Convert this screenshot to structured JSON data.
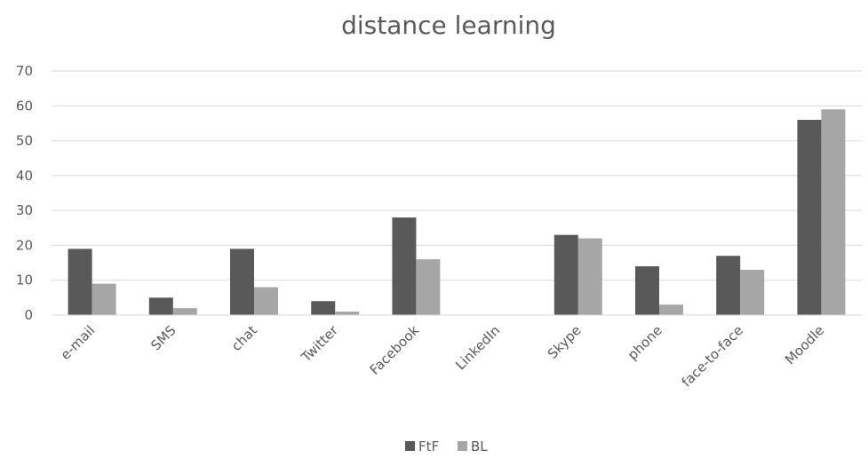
{
  "chart_data": {
    "type": "bar",
    "title": "distance learning",
    "xlabel": "",
    "ylabel": "",
    "ylim": [
      0,
      70
    ],
    "yticks": [
      0,
      10,
      20,
      30,
      40,
      50,
      60,
      70
    ],
    "grid": true,
    "legend_position": "bottom",
    "categories": [
      "e-mail",
      "SMS",
      "chat",
      "Twitter",
      "Facebook",
      "LinkedIn",
      "Skype",
      "phone",
      "face-to-face",
      "Moodle"
    ],
    "series": [
      {
        "name": "FtF",
        "color": "#595959",
        "values": [
          19,
          5,
          19,
          4,
          28,
          0,
          23,
          14,
          17,
          56
        ]
      },
      {
        "name": "BL",
        "color": "#a6a6a6",
        "values": [
          9,
          2,
          8,
          1,
          16,
          0,
          22,
          3,
          13,
          59
        ]
      }
    ]
  }
}
